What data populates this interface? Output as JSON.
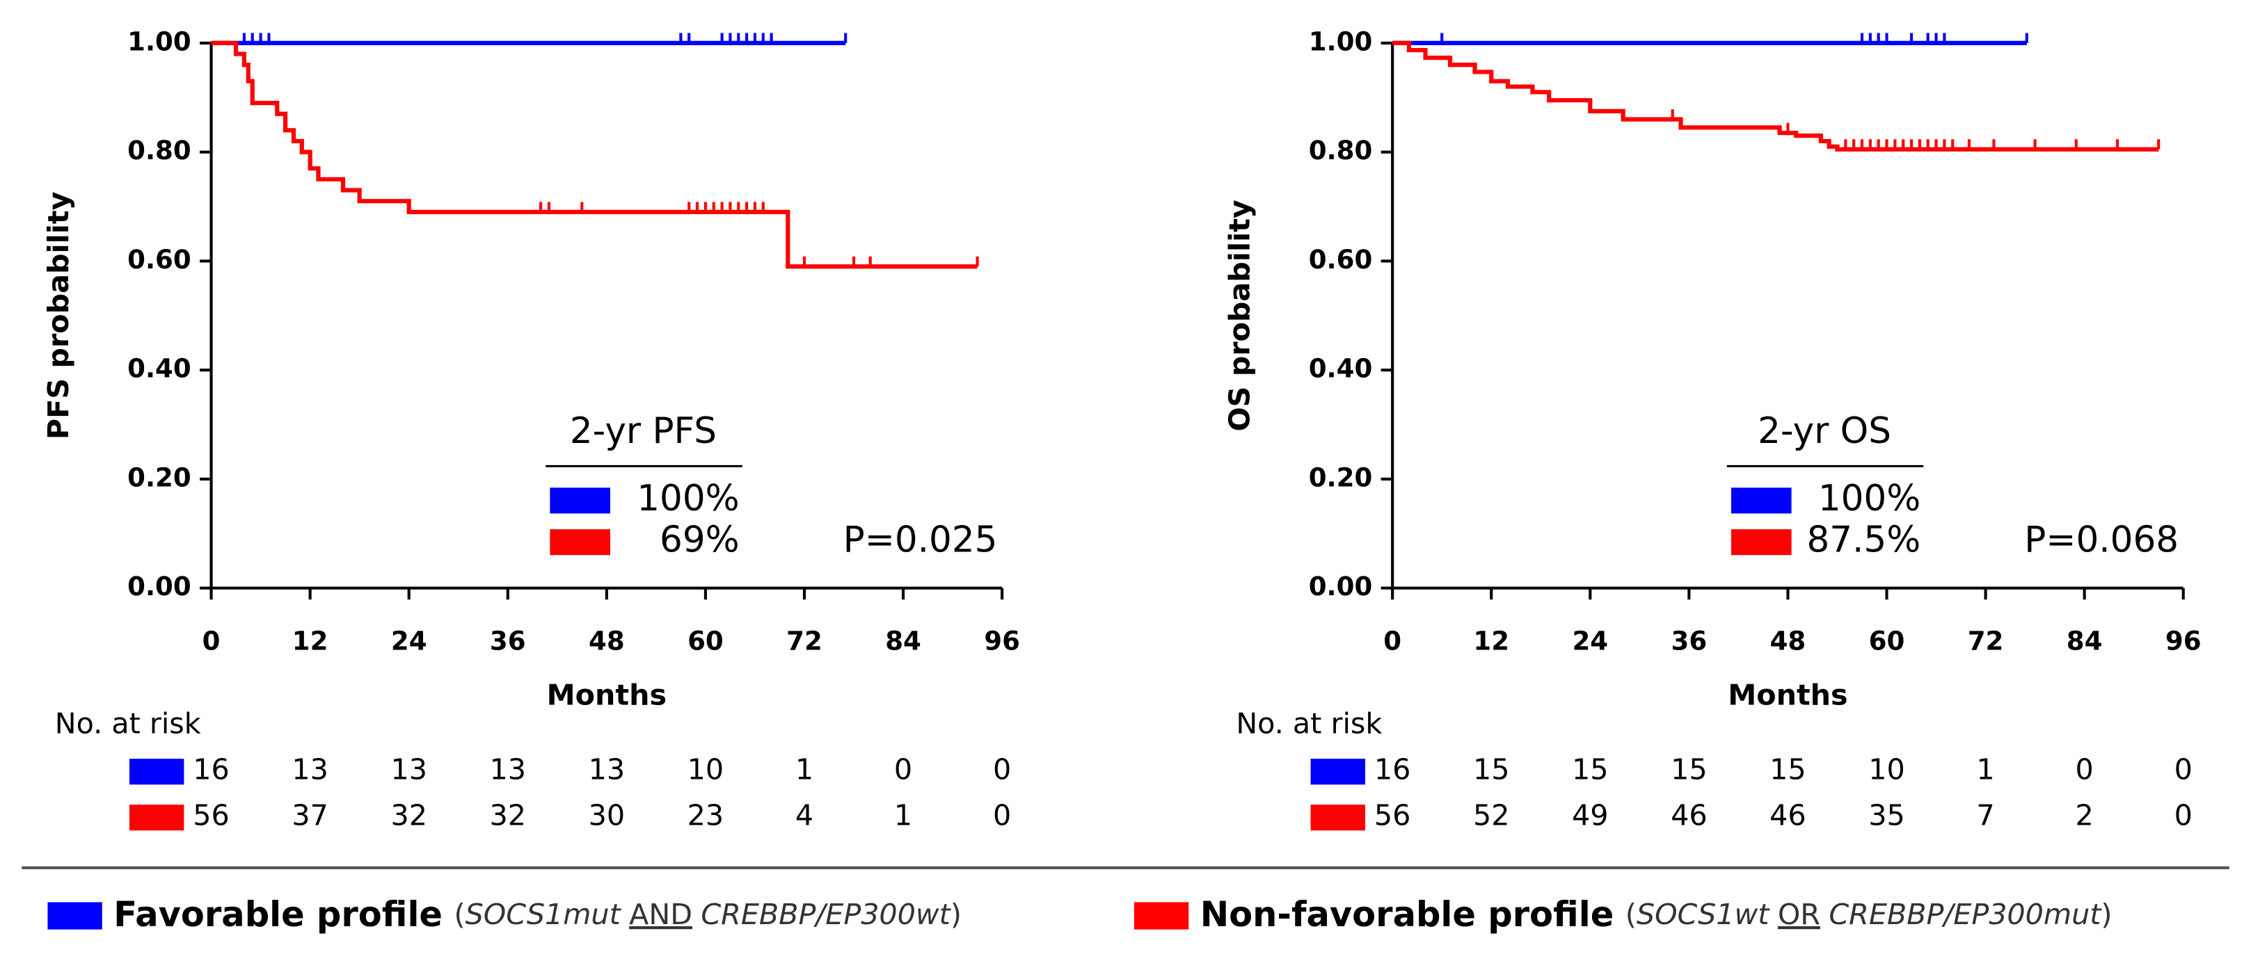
{
  "chart_data": [
    {
      "type": "line",
      "step": true,
      "ylabel": "PFS probability",
      "xlabel": "Months",
      "xlim": [
        0,
        96
      ],
      "ylim": [
        0,
        1
      ],
      "xticks": [
        0,
        12,
        24,
        36,
        48,
        60,
        72,
        84,
        96
      ],
      "yticks": [
        {
          "value": 0,
          "label": "0.00"
        },
        {
          "value": 0.2,
          "label": "0.20"
        },
        {
          "value": 0.4,
          "label": "0.40"
        },
        {
          "value": 0.6,
          "label": "0.60"
        },
        {
          "value": 0.8,
          "label": "0.80"
        },
        {
          "value": 1,
          "label": "1.00"
        }
      ],
      "series": [
        {
          "name": "Favorable profile",
          "color": "#0000ff",
          "x": [
            0,
            77
          ],
          "values": [
            1,
            1
          ],
          "censor_x": [
            4,
            5,
            6,
            7,
            57,
            58,
            62,
            63,
            64,
            65,
            66,
            67,
            68,
            77
          ]
        },
        {
          "name": "Non-favorable profile",
          "color": "#ff0000",
          "x": [
            0,
            3,
            3,
            4,
            4,
            4.5,
            4.5,
            5,
            5,
            8,
            8,
            9,
            9,
            10,
            10,
            11,
            11,
            12,
            12,
            13,
            13,
            16,
            16,
            18,
            18,
            24,
            24,
            70,
            70,
            93
          ],
          "values": [
            1,
            1,
            0.98,
            0.98,
            0.96,
            0.96,
            0.93,
            0.93,
            0.89,
            0.89,
            0.87,
            0.87,
            0.84,
            0.84,
            0.82,
            0.82,
            0.8,
            0.8,
            0.77,
            0.77,
            0.75,
            0.75,
            0.73,
            0.73,
            0.71,
            0.71,
            0.69,
            0.69,
            0.59,
            0.59
          ],
          "censor_x": [
            40,
            41,
            45,
            58,
            59,
            60,
            61,
            62,
            63,
            64,
            65,
            66,
            67,
            72,
            78,
            80,
            93
          ]
        }
      ],
      "legend": {
        "title": "2-yr PFS",
        "labels": [
          "100%",
          "69%"
        ]
      },
      "annotation": "P=0.025",
      "risk_table": {
        "title": "No. at risk",
        "rows": [
          [
            16,
            13,
            13,
            13,
            13,
            10,
            1,
            0,
            0
          ],
          [
            56,
            37,
            32,
            32,
            30,
            23,
            4,
            1,
            0
          ]
        ]
      }
    },
    {
      "type": "line",
      "step": true,
      "ylabel": "OS probability",
      "xlabel": "Months",
      "xlim": [
        0,
        96
      ],
      "ylim": [
        0,
        1
      ],
      "xticks": [
        0,
        12,
        24,
        36,
        48,
        60,
        72,
        84,
        96
      ],
      "yticks": [
        {
          "value": 0,
          "label": "0.00"
        },
        {
          "value": 0.2,
          "label": "0.20"
        },
        {
          "value": 0.4,
          "label": "0.40"
        },
        {
          "value": 0.6,
          "label": "0.60"
        },
        {
          "value": 0.8,
          "label": "0.80"
        },
        {
          "value": 1,
          "label": "1.00"
        }
      ],
      "series": [
        {
          "color": "#0000ff",
          "x": [
            0,
            77
          ],
          "values": [
            1,
            1
          ],
          "censor_x": [
            6,
            57,
            58,
            59,
            60,
            63,
            65,
            66,
            67,
            77
          ]
        },
        {
          "color": "#ff0000",
          "x": [
            0,
            2,
            2,
            4,
            4,
            7,
            7,
            10,
            10,
            12,
            12,
            14,
            14,
            17,
            17,
            19,
            19,
            24,
            24,
            28,
            28,
            35,
            35,
            47,
            47,
            49,
            49,
            52,
            52,
            53,
            53,
            54,
            54,
            93
          ],
          "values": [
            1,
            1,
            0.987,
            0.987,
            0.973,
            0.973,
            0.96,
            0.96,
            0.947,
            0.947,
            0.93,
            0.93,
            0.92,
            0.92,
            0.91,
            0.91,
            0.895,
            0.895,
            0.875,
            0.875,
            0.86,
            0.86,
            0.845,
            0.845,
            0.835,
            0.835,
            0.83,
            0.83,
            0.82,
            0.82,
            0.81,
            0.81,
            0.805,
            0.805
          ],
          "censor_x": [
            34,
            48,
            55,
            56,
            57,
            58,
            59,
            60,
            61,
            62,
            63,
            64,
            65,
            66,
            67,
            68,
            70,
            73,
            78,
            83,
            88,
            93
          ]
        }
      ],
      "legend": {
        "title": "2-yr OS",
        "labels": [
          "100%",
          "87.5%"
        ]
      },
      "annotation": "P=0.068",
      "risk_table": {
        "title": "No. at risk",
        "rows": [
          [
            16,
            15,
            15,
            15,
            15,
            10,
            1,
            0,
            0
          ],
          [
            56,
            52,
            49,
            46,
            46,
            35,
            7,
            2,
            0
          ]
        ]
      }
    }
  ],
  "footer_notes": [
    [
      {
        "text": "(",
        "style": "normal"
      },
      {
        "text": "SOCS1mut",
        "style": "italic"
      },
      {
        "text": "AND",
        "style": "underline"
      },
      {
        "text": "CREBBP/EP300wt",
        "style": "italic"
      },
      {
        "text": ")",
        "style": "normal"
      }
    ],
    [
      {
        "text": "(",
        "style": "normal"
      },
      {
        "text": "SOCS1wt",
        "style": "italic"
      },
      {
        "text": "OR",
        "style": "underline"
      },
      {
        "text": "CREBBP/EP300mut",
        "style": "italic"
      },
      {
        "text": ")",
        "style": "normal"
      }
    ]
  ]
}
